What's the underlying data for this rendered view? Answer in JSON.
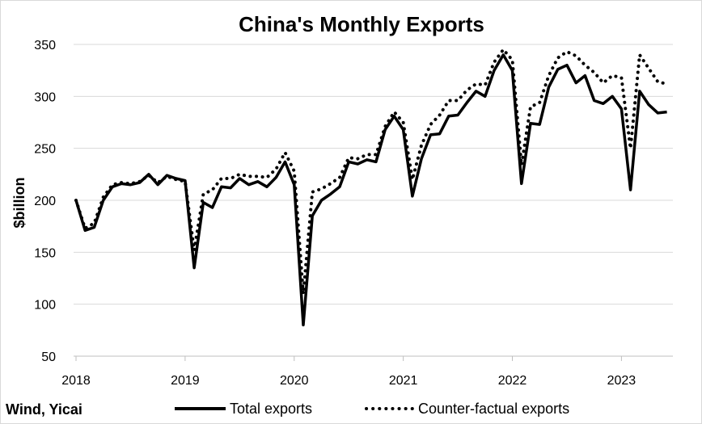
{
  "chart_data": {
    "type": "line",
    "title": "China's Monthly Exports",
    "ylabel": "$billion",
    "xlabel": "",
    "ylim": [
      50,
      350
    ],
    "yticks": [
      50,
      100,
      150,
      200,
      250,
      300,
      350
    ],
    "xticks": [
      "2018",
      "2019",
      "2020",
      "2021",
      "2022",
      "2023"
    ],
    "grid": "horizontal",
    "legend": "bottom",
    "source": "Wind, Yicai",
    "start_month": "2018-01",
    "series": [
      {
        "name": "Total exports",
        "style": "solid",
        "color": "#000000",
        "values": [
          200,
          171,
          174,
          200,
          213,
          216,
          215,
          217,
          225,
          215,
          224,
          221,
          219,
          135,
          198,
          193,
          213,
          212,
          221,
          215,
          218,
          213,
          222,
          237,
          215,
          80,
          185,
          200,
          206,
          213,
          237,
          235,
          239,
          237,
          268,
          281,
          268,
          204,
          240,
          263,
          264,
          281,
          282,
          294,
          305,
          300,
          325,
          340,
          325,
          216,
          274,
          273,
          309,
          326,
          330,
          313,
          320,
          296,
          293,
          300,
          288,
          210,
          305,
          292,
          284,
          285
        ]
      },
      {
        "name": "Counter-factual exports",
        "style": "dotted",
        "color": "#000000",
        "values": [
          200,
          173,
          178,
          203,
          215,
          217,
          216,
          218,
          224,
          217,
          223,
          220,
          218,
          152,
          206,
          210,
          221,
          221,
          225,
          223,
          223,
          222,
          230,
          246,
          228,
          110,
          208,
          211,
          216,
          222,
          241,
          240,
          244,
          244,
          271,
          285,
          275,
          220,
          253,
          273,
          282,
          296,
          296,
          306,
          312,
          311,
          333,
          345,
          335,
          234,
          290,
          294,
          320,
          337,
          343,
          339,
          330,
          323,
          313,
          320,
          318,
          250,
          340,
          327,
          314,
          312
        ]
      }
    ]
  }
}
